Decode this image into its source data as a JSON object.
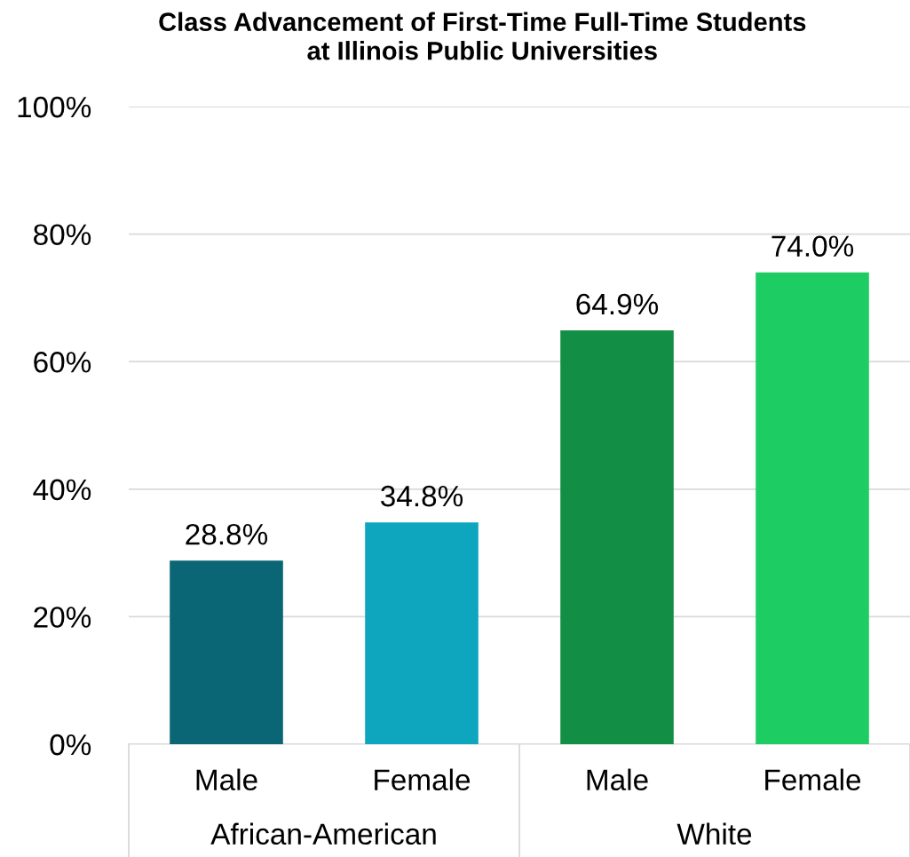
{
  "chart_data": {
    "type": "bar",
    "title": "Class Advancement of First-Time Full-Time Students\nat Illinois Public Universities",
    "categories": [
      "Male",
      "Female",
      "Male",
      "Female"
    ],
    "values": [
      28.8,
      34.8,
      64.9,
      74.0
    ],
    "colors": [
      "#0a6674",
      "#0ea5bf",
      "#138f45",
      "#1dcc63"
    ],
    "value_labels": [
      "28.8%",
      "34.8%",
      "64.9%",
      "74.0%"
    ],
    "ylim": [
      0,
      100
    ],
    "yticks": [
      {
        "value": 0,
        "label": "0%"
      },
      {
        "value": 20,
        "label": "20%"
      },
      {
        "value": 40,
        "label": "40%"
      },
      {
        "value": 60,
        "label": "60%"
      },
      {
        "value": 80,
        "label": "80%"
      },
      {
        "value": 100,
        "label": "100%"
      }
    ],
    "grid": "y",
    "legend": false,
    "annotations": [
      "African-American",
      "White"
    ]
  }
}
